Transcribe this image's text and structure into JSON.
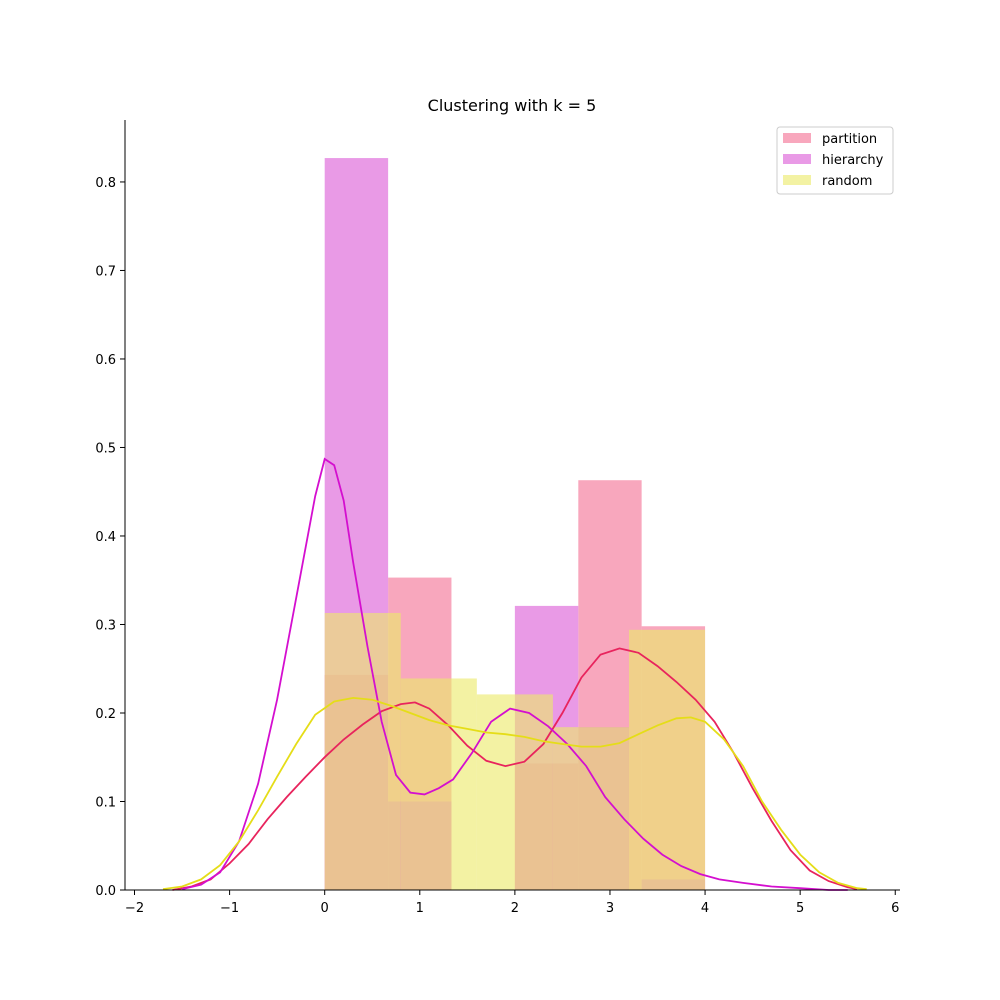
{
  "chart_data": {
    "type": "histogram",
    "title": "Clustering with k = 5",
    "xlabel": "",
    "ylabel": "",
    "xlim": [
      -2.1,
      6.05
    ],
    "ylim": [
      0,
      0.87
    ],
    "x_ticks": [
      -2,
      -1,
      0,
      1,
      2,
      3,
      4,
      5,
      6
    ],
    "y_ticks": [
      0.0,
      0.1,
      0.2,
      0.3,
      0.4,
      0.5,
      0.6,
      0.7,
      0.8
    ],
    "grid": false,
    "legend_position": "top-right",
    "series": [
      {
        "name": "partition",
        "color": "#f4799b",
        "opacity": 0.66,
        "line_color": "#e8245d",
        "bins": [
          {
            "x0": 0.0,
            "x1": 0.667,
            "value": 0.243
          },
          {
            "x0": 0.667,
            "x1": 1.333,
            "value": 0.353
          },
          {
            "x0": 1.333,
            "x1": 2.0,
            "value": 0.0
          },
          {
            "x0": 2.0,
            "x1": 2.667,
            "value": 0.143
          },
          {
            "x0": 2.667,
            "x1": 3.333,
            "value": 0.463
          },
          {
            "x0": 3.333,
            "x1": 4.0,
            "value": 0.298
          }
        ],
        "kde": [
          [
            -1.6,
            0.0
          ],
          [
            -1.4,
            0.004
          ],
          [
            -1.2,
            0.012
          ],
          [
            -1.0,
            0.03
          ],
          [
            -0.8,
            0.052
          ],
          [
            -0.6,
            0.08
          ],
          [
            -0.4,
            0.105
          ],
          [
            -0.2,
            0.128
          ],
          [
            0.0,
            0.15
          ],
          [
            0.2,
            0.17
          ],
          [
            0.4,
            0.187
          ],
          [
            0.6,
            0.202
          ],
          [
            0.8,
            0.21
          ],
          [
            0.95,
            0.212
          ],
          [
            1.1,
            0.205
          ],
          [
            1.3,
            0.186
          ],
          [
            1.5,
            0.163
          ],
          [
            1.7,
            0.146
          ],
          [
            1.9,
            0.14
          ],
          [
            2.1,
            0.145
          ],
          [
            2.3,
            0.165
          ],
          [
            2.5,
            0.2
          ],
          [
            2.7,
            0.24
          ],
          [
            2.9,
            0.266
          ],
          [
            3.1,
            0.273
          ],
          [
            3.3,
            0.268
          ],
          [
            3.5,
            0.253
          ],
          [
            3.7,
            0.235
          ],
          [
            3.9,
            0.215
          ],
          [
            4.1,
            0.19
          ],
          [
            4.3,
            0.155
          ],
          [
            4.5,
            0.115
          ],
          [
            4.7,
            0.078
          ],
          [
            4.9,
            0.045
          ],
          [
            5.1,
            0.022
          ],
          [
            5.3,
            0.01
          ],
          [
            5.5,
            0.003
          ],
          [
            5.6,
            0.001
          ]
        ]
      },
      {
        "name": "hierarchy",
        "color": "#e06fdc",
        "opacity": 0.7,
        "line_color": "#d40fcf",
        "bins": [
          {
            "x0": 0.0,
            "x1": 0.667,
            "value": 0.827
          },
          {
            "x0": 0.667,
            "x1": 1.333,
            "value": 0.1
          },
          {
            "x0": 1.333,
            "x1": 2.0,
            "value": 0.0
          },
          {
            "x0": 2.0,
            "x1": 2.667,
            "value": 0.321
          },
          {
            "x0": 2.667,
            "x1": 3.2,
            "value": 0.184
          },
          {
            "x0": 3.333,
            "x1": 4.0,
            "value": 0.012
          }
        ],
        "kde": [
          [
            -1.5,
            0.001
          ],
          [
            -1.3,
            0.006
          ],
          [
            -1.1,
            0.02
          ],
          [
            -0.9,
            0.055
          ],
          [
            -0.7,
            0.12
          ],
          [
            -0.5,
            0.215
          ],
          [
            -0.3,
            0.33
          ],
          [
            -0.1,
            0.445
          ],
          [
            0.0,
            0.487
          ],
          [
            0.1,
            0.48
          ],
          [
            0.2,
            0.44
          ],
          [
            0.3,
            0.37
          ],
          [
            0.45,
            0.275
          ],
          [
            0.6,
            0.19
          ],
          [
            0.75,
            0.13
          ],
          [
            0.9,
            0.11
          ],
          [
            1.05,
            0.108
          ],
          [
            1.2,
            0.115
          ],
          [
            1.35,
            0.125
          ],
          [
            1.55,
            0.155
          ],
          [
            1.75,
            0.19
          ],
          [
            1.95,
            0.205
          ],
          [
            2.15,
            0.2
          ],
          [
            2.35,
            0.185
          ],
          [
            2.55,
            0.165
          ],
          [
            2.75,
            0.14
          ],
          [
            2.95,
            0.105
          ],
          [
            3.15,
            0.08
          ],
          [
            3.35,
            0.058
          ],
          [
            3.55,
            0.04
          ],
          [
            3.75,
            0.027
          ],
          [
            3.95,
            0.018
          ],
          [
            4.15,
            0.012
          ],
          [
            4.4,
            0.008
          ],
          [
            4.7,
            0.004
          ],
          [
            5.0,
            0.002
          ],
          [
            5.3,
            0.0
          ],
          [
            5.5,
            0.0
          ]
        ]
      },
      {
        "name": "random",
        "color": "#ecea6b",
        "opacity": 0.62,
        "line_color": "#e5dd18",
        "bins": [
          {
            "x0": 0.0,
            "x1": 0.8,
            "value": 0.313
          },
          {
            "x0": 0.8,
            "x1": 1.6,
            "value": 0.239
          },
          {
            "x0": 1.6,
            "x1": 2.4,
            "value": 0.221
          },
          {
            "x0": 2.4,
            "x1": 3.2,
            "value": 0.184
          },
          {
            "x0": 3.2,
            "x1": 4.0,
            "value": 0.294
          }
        ],
        "kde": [
          [
            -1.7,
            0.001
          ],
          [
            -1.5,
            0.004
          ],
          [
            -1.3,
            0.012
          ],
          [
            -1.1,
            0.028
          ],
          [
            -0.9,
            0.055
          ],
          [
            -0.7,
            0.09
          ],
          [
            -0.5,
            0.128
          ],
          [
            -0.3,
            0.165
          ],
          [
            -0.1,
            0.198
          ],
          [
            0.1,
            0.213
          ],
          [
            0.3,
            0.217
          ],
          [
            0.5,
            0.215
          ],
          [
            0.7,
            0.208
          ],
          [
            0.9,
            0.2
          ],
          [
            1.1,
            0.192
          ],
          [
            1.3,
            0.186
          ],
          [
            1.5,
            0.182
          ],
          [
            1.7,
            0.178
          ],
          [
            1.9,
            0.176
          ],
          [
            2.1,
            0.173
          ],
          [
            2.3,
            0.168
          ],
          [
            2.5,
            0.165
          ],
          [
            2.7,
            0.162
          ],
          [
            2.9,
            0.162
          ],
          [
            3.1,
            0.166
          ],
          [
            3.3,
            0.176
          ],
          [
            3.5,
            0.186
          ],
          [
            3.7,
            0.194
          ],
          [
            3.85,
            0.195
          ],
          [
            4.0,
            0.19
          ],
          [
            4.2,
            0.17
          ],
          [
            4.4,
            0.14
          ],
          [
            4.6,
            0.1
          ],
          [
            4.8,
            0.068
          ],
          [
            5.0,
            0.04
          ],
          [
            5.2,
            0.02
          ],
          [
            5.4,
            0.008
          ],
          [
            5.6,
            0.002
          ],
          [
            5.7,
            0.001
          ]
        ]
      }
    ]
  }
}
